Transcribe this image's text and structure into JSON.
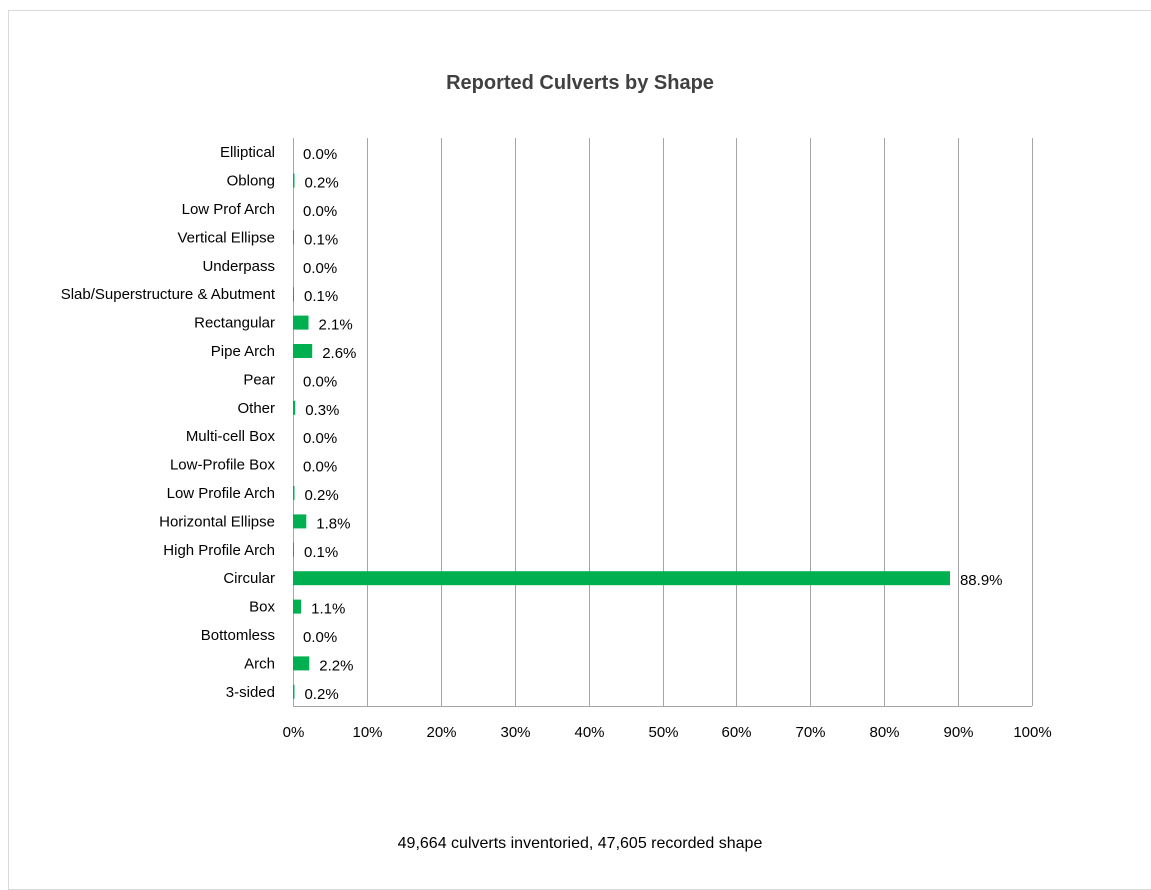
{
  "chart_data": {
    "type": "bar",
    "orientation": "horizontal",
    "title": "Reported Culverts by Shape",
    "note": "49,664 culverts inventoried, 47,605 recorded shape",
    "categories": [
      "Elliptical",
      "Oblong",
      "Low Prof Arch",
      "Vertical Ellipse",
      "Underpass",
      "Slab/Superstructure & Abutment",
      "Rectangular",
      "Pipe Arch",
      "Pear",
      "Other",
      "Multi-cell Box",
      "Low-Profile Box",
      "Low Profile Arch",
      "Horizontal Ellipse",
      "High Profile Arch",
      "Circular",
      "Box",
      "Bottomless",
      "Arch",
      "3-sided"
    ],
    "values": [
      0.0,
      0.2,
      0.0,
      0.1,
      0.0,
      0.1,
      2.1,
      2.6,
      0.0,
      0.3,
      0.0,
      0.0,
      0.2,
      1.8,
      0.1,
      88.9,
      1.1,
      0.0,
      2.2,
      0.2
    ],
    "value_labels": [
      "0.0%",
      "0.2%",
      "0.0%",
      "0.1%",
      "0.0%",
      "0.1%",
      "2.1%",
      "2.6%",
      "0.0%",
      "0.3%",
      "0.0%",
      "0.0%",
      "0.2%",
      "1.8%",
      "0.1%",
      "88.9%",
      "1.1%",
      "0.0%",
      "2.2%",
      "0.2%"
    ],
    "xlim": [
      0,
      100
    ],
    "xticks": [
      "0%",
      "10%",
      "20%",
      "30%",
      "40%",
      "50%",
      "60%",
      "70%",
      "80%",
      "90%",
      "100%"
    ],
    "bar_color": "#00b050",
    "grid_color": "#a6a6a6",
    "grid": true,
    "legend": "none"
  }
}
